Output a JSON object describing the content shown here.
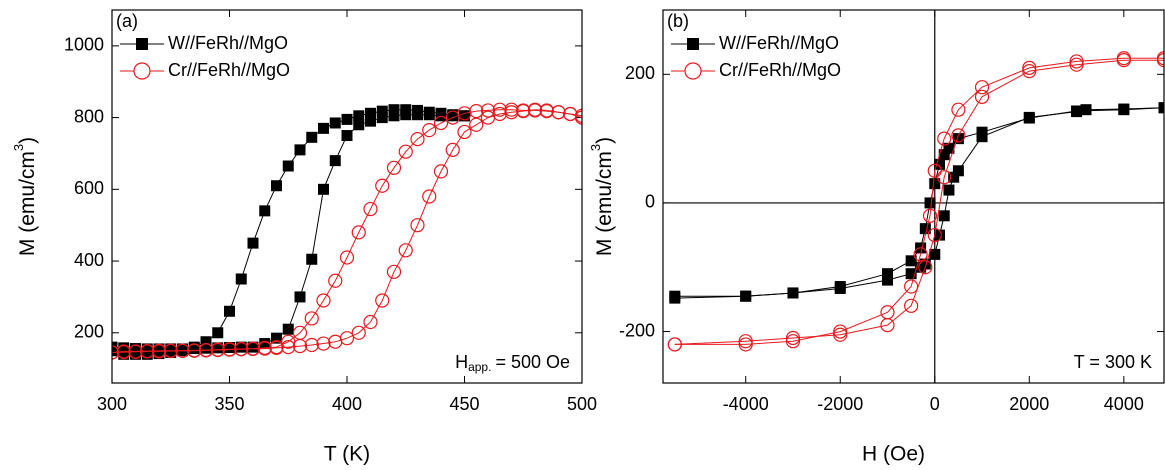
{
  "chart_data": [
    {
      "type": "line",
      "panel_label": "(a)",
      "x_label": "T (K)",
      "y_label": [
        "M (emu/cm",
        "3",
        ")"
      ],
      "annotation": [
        "H",
        "app.",
        "= 500 Oe"
      ],
      "xlim": [
        300,
        500
      ],
      "xticks": [
        300,
        350,
        400,
        450,
        500
      ],
      "ylim": [
        60,
        1100
      ],
      "yticks": [
        200,
        400,
        600,
        800,
        1000
      ],
      "series": [
        {
          "name": "W//FeRh//MgO",
          "color": "#000000",
          "marker": "square",
          "branches": [
            {
              "x": [
                300,
                305,
                310,
                315,
                320,
                325,
                330,
                335,
                340,
                345,
                350,
                355,
                360,
                365,
                370,
                375,
                380,
                385,
                390,
                395,
                400,
                405,
                410,
                415,
                420,
                425,
                430,
                435,
                440,
                445,
                450
              ],
              "values": [
                150,
                140,
                140,
                140,
                142,
                145,
                150,
                160,
                175,
                200,
                260,
                350,
                450,
                540,
                610,
                665,
                710,
                745,
                770,
                785,
                795,
                805,
                812,
                818,
                822,
                822,
                820,
                815,
                812,
                808,
                805
              ]
            },
            {
              "x": [
                300,
                305,
                310,
                315,
                320,
                325,
                330,
                335,
                340,
                345,
                350,
                355,
                360,
                365,
                370,
                375,
                380,
                385,
                390,
                395,
                400,
                405,
                410,
                415,
                420,
                425,
                430,
                435,
                440,
                445,
                450
              ],
              "values": [
                160,
                158,
                156,
                155,
                155,
                155,
                155,
                156,
                157,
                158,
                159,
                160,
                160,
                170,
                185,
                210,
                300,
                405,
                600,
                680,
                750,
                780,
                790,
                800,
                805,
                808,
                808,
                808,
                805,
                805,
                805
              ]
            }
          ]
        },
        {
          "name": "Cr//FeRh//MgO",
          "color": "#e8181c",
          "marker": "circle",
          "branches": [
            {
              "x": [
                300,
                305,
                310,
                315,
                320,
                325,
                330,
                335,
                340,
                345,
                350,
                355,
                360,
                365,
                370,
                375,
                380,
                385,
                390,
                395,
                400,
                405,
                410,
                415,
                420,
                425,
                430,
                435,
                440,
                445,
                450,
                455,
                460,
                465,
                470,
                475,
                480,
                485,
                490,
                495,
                500
              ],
              "values": [
                145,
                148,
                148,
                149,
                150,
                150,
                150,
                151,
                152,
                153,
                154,
                155,
                156,
                158,
                160,
                175,
                200,
                240,
                290,
                345,
                410,
                480,
                545,
                610,
                660,
                705,
                740,
                765,
                785,
                800,
                812,
                818,
                820,
                822,
                822,
                820,
                820,
                818,
                815,
                810,
                800
              ]
            },
            {
              "x": [
                300,
                305,
                310,
                315,
                320,
                325,
                330,
                335,
                340,
                345,
                350,
                355,
                360,
                365,
                370,
                375,
                380,
                385,
                390,
                395,
                400,
                405,
                410,
                415,
                420,
                425,
                430,
                435,
                440,
                445,
                450,
                455,
                460,
                465,
                470,
                475,
                480,
                485,
                490,
                495,
                500
              ],
              "values": [
                145,
                146,
                147,
                148,
                148,
                149,
                150,
                150,
                151,
                152,
                153,
                154,
                155,
                156,
                158,
                160,
                163,
                166,
                170,
                175,
                185,
                200,
                230,
                290,
                370,
                430,
                500,
                580,
                650,
                710,
                760,
                780,
                800,
                810,
                815,
                818,
                822,
                820,
                815,
                810,
                805
              ]
            }
          ]
        }
      ]
    },
    {
      "type": "line",
      "panel_label": "(b)",
      "x_label": "H (Oe)",
      "y_label": [
        "M (emu/cm",
        "3",
        ")"
      ],
      "annotation": [
        "T = 300 K"
      ],
      "xlim": [
        -5750,
        4850
      ],
      "xticks": [
        -4000,
        -2000,
        0,
        2000,
        4000
      ],
      "ylim": [
        -280,
        300
      ],
      "yticks": [
        -200,
        0,
        200
      ],
      "zero_lines": true,
      "series": [
        {
          "name": "W//FeRh//MgO",
          "color": "#000000",
          "marker": "square",
          "branches": [
            {
              "x": [
                -5500,
                -4000,
                -3000,
                -2000,
                -1000,
                -500,
                -300,
                -200,
                -100,
                0,
                100,
                200,
                300,
                500,
                1000,
                2000,
                3000,
                4000,
                4850
              ],
              "values": [
                -145,
                -145,
                -140,
                -130,
                -110,
                -90,
                -70,
                -40,
                0,
                30,
                60,
                75,
                85,
                100,
                110,
                132,
                143,
                145,
                148
              ]
            },
            {
              "x": [
                4850,
                4000,
                3200,
                3000,
                2000,
                1000,
                500,
                400,
                300,
                200,
                100,
                0,
                -200,
                -300,
                -500,
                -1000,
                -2000,
                -3000,
                -4000,
                -5500
              ],
              "values": [
                148,
                146,
                145,
                142,
                133,
                103,
                50,
                40,
                20,
                -20,
                -50,
                -80,
                -95,
                -100,
                -110,
                -120,
                -133,
                -140,
                -145,
                -148
              ]
            }
          ]
        },
        {
          "name": "Cr//FeRh//MgO",
          "color": "#e8181c",
          "marker": "circle",
          "branches": [
            {
              "x": [
                -5500,
                -4000,
                -3000,
                -2000,
                -1000,
                -500,
                -300,
                -100,
                0,
                200,
                500,
                1000,
                2000,
                3000,
                4000,
                4850
              ],
              "values": [
                -220,
                -220,
                -215,
                -200,
                -170,
                -130,
                -80,
                -20,
                50,
                100,
                145,
                180,
                210,
                220,
                225,
                225
              ]
            },
            {
              "x": [
                4850,
                4000,
                3000,
                2000,
                1000,
                500,
                200,
                0,
                -200,
                -500,
                -1000,
                -2000,
                -3000,
                -4000,
                -5500
              ],
              "values": [
                222,
                222,
                215,
                205,
                165,
                105,
                40,
                -50,
                -100,
                -160,
                -190,
                -205,
                -210,
                -215,
                -220
              ]
            }
          ]
        }
      ]
    }
  ]
}
